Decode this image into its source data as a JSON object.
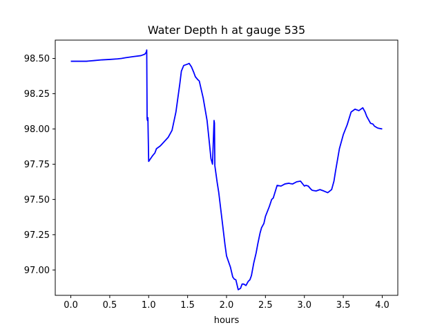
{
  "chart_data": {
    "type": "line",
    "title": "Water Depth h at gauge 535",
    "xlabel": "hours",
    "ylabel": "",
    "xlim": [
      -0.2,
      4.2
    ],
    "ylim": [
      96.82,
      98.63
    ],
    "grid": false,
    "legend": "none",
    "x_ticks": [
      0.0,
      0.5,
      1.0,
      1.5,
      2.0,
      2.5,
      3.0,
      3.5,
      4.0
    ],
    "x_tick_labels": [
      "0.0",
      "0.5",
      "1.0",
      "1.5",
      "2.0",
      "2.5",
      "3.0",
      "3.5",
      "4.0"
    ],
    "y_ticks": [
      97.0,
      97.25,
      97.5,
      97.75,
      98.0,
      98.25,
      98.5
    ],
    "y_tick_labels": [
      "97.00",
      "97.25",
      "97.50",
      "97.75",
      "98.00",
      "98.25",
      "98.50"
    ],
    "series": [
      {
        "color": "#0000ff",
        "x": [
          0.0,
          0.1,
          0.2,
          0.3,
          0.4,
          0.5,
          0.6,
          0.65,
          0.7,
          0.8,
          0.9,
          0.95,
          0.97,
          0.975,
          0.98,
          0.985,
          0.99,
          1.0,
          1.05,
          1.08,
          1.1,
          1.15,
          1.2,
          1.25,
          1.3,
          1.35,
          1.4,
          1.42,
          1.45,
          1.5,
          1.52,
          1.55,
          1.58,
          1.6,
          1.63,
          1.65,
          1.7,
          1.75,
          1.78,
          1.8,
          1.82,
          1.84,
          1.845,
          1.85,
          1.855,
          1.86,
          1.865,
          1.87,
          1.88,
          1.9,
          1.95,
          1.98,
          2.0,
          2.05,
          2.08,
          2.1,
          2.12,
          2.15,
          2.18,
          2.2,
          2.22,
          2.25,
          2.28,
          2.3,
          2.32,
          2.35,
          2.38,
          2.4,
          2.43,
          2.45,
          2.48,
          2.5,
          2.55,
          2.58,
          2.6,
          2.65,
          2.7,
          2.75,
          2.8,
          2.82,
          2.85,
          2.9,
          2.95,
          3.0,
          3.02,
          3.05,
          3.08,
          3.1,
          3.15,
          3.2,
          3.25,
          3.3,
          3.35,
          3.38,
          3.4,
          3.45,
          3.5,
          3.55,
          3.6,
          3.65,
          3.7,
          3.75,
          3.78,
          3.8,
          3.83,
          3.85,
          3.88,
          3.9,
          3.93,
          3.95,
          4.0
        ],
        "y": [
          98.48,
          98.48,
          98.48,
          98.485,
          98.49,
          98.493,
          98.497,
          98.5,
          98.505,
          98.513,
          98.52,
          98.53,
          98.545,
          98.56,
          98.07,
          98.06,
          98.08,
          97.77,
          97.81,
          97.83,
          97.86,
          97.88,
          97.91,
          97.94,
          97.99,
          98.12,
          98.32,
          98.41,
          98.45,
          98.46,
          98.465,
          98.44,
          98.4,
          98.37,
          98.35,
          98.34,
          98.22,
          98.06,
          97.9,
          97.79,
          97.75,
          98.06,
          98.04,
          97.74,
          97.72,
          97.7,
          97.68,
          97.66,
          97.62,
          97.55,
          97.32,
          97.18,
          97.1,
          97.02,
          96.95,
          96.935,
          96.93,
          96.86,
          96.87,
          96.9,
          96.9,
          96.89,
          96.92,
          96.93,
          96.96,
          97.05,
          97.12,
          97.18,
          97.26,
          97.3,
          97.33,
          97.38,
          97.45,
          97.5,
          97.51,
          97.6,
          97.595,
          97.61,
          97.615,
          97.612,
          97.61,
          97.625,
          97.63,
          97.595,
          97.6,
          97.595,
          97.575,
          97.565,
          97.56,
          97.57,
          97.56,
          97.548,
          97.57,
          97.63,
          97.7,
          97.86,
          97.96,
          98.03,
          98.12,
          98.14,
          98.13,
          98.15,
          98.12,
          98.09,
          98.06,
          98.04,
          98.035,
          98.02,
          98.01,
          98.005,
          98.0
        ]
      }
    ]
  }
}
